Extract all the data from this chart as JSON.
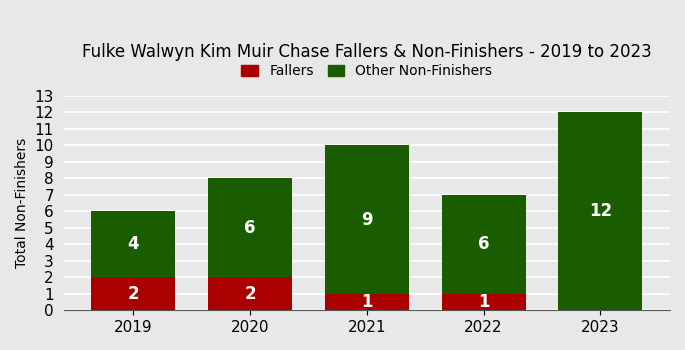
{
  "title": "Fulke Walwyn Kim Muir Chase Fallers & Non-Finishers - 2019 to 2023",
  "years": [
    "2019",
    "2020",
    "2021",
    "2022",
    "2023"
  ],
  "fallers": [
    2,
    2,
    1,
    1,
    0
  ],
  "other_non_finishers": [
    4,
    6,
    9,
    6,
    12
  ],
  "faller_color": "#aa0000",
  "other_color": "#1a5c00",
  "ylabel": "Total Non-Finishers",
  "ylim": [
    0,
    13
  ],
  "yticks": [
    0,
    1,
    2,
    3,
    4,
    5,
    6,
    7,
    8,
    9,
    10,
    11,
    12,
    13
  ],
  "legend_labels": [
    "Fallers",
    "Other Non-Finishers"
  ],
  "background_color": "#e8e8e8",
  "bar_width": 0.72,
  "label_fontsize": 12,
  "title_fontsize": 12,
  "tick_fontsize": 11
}
